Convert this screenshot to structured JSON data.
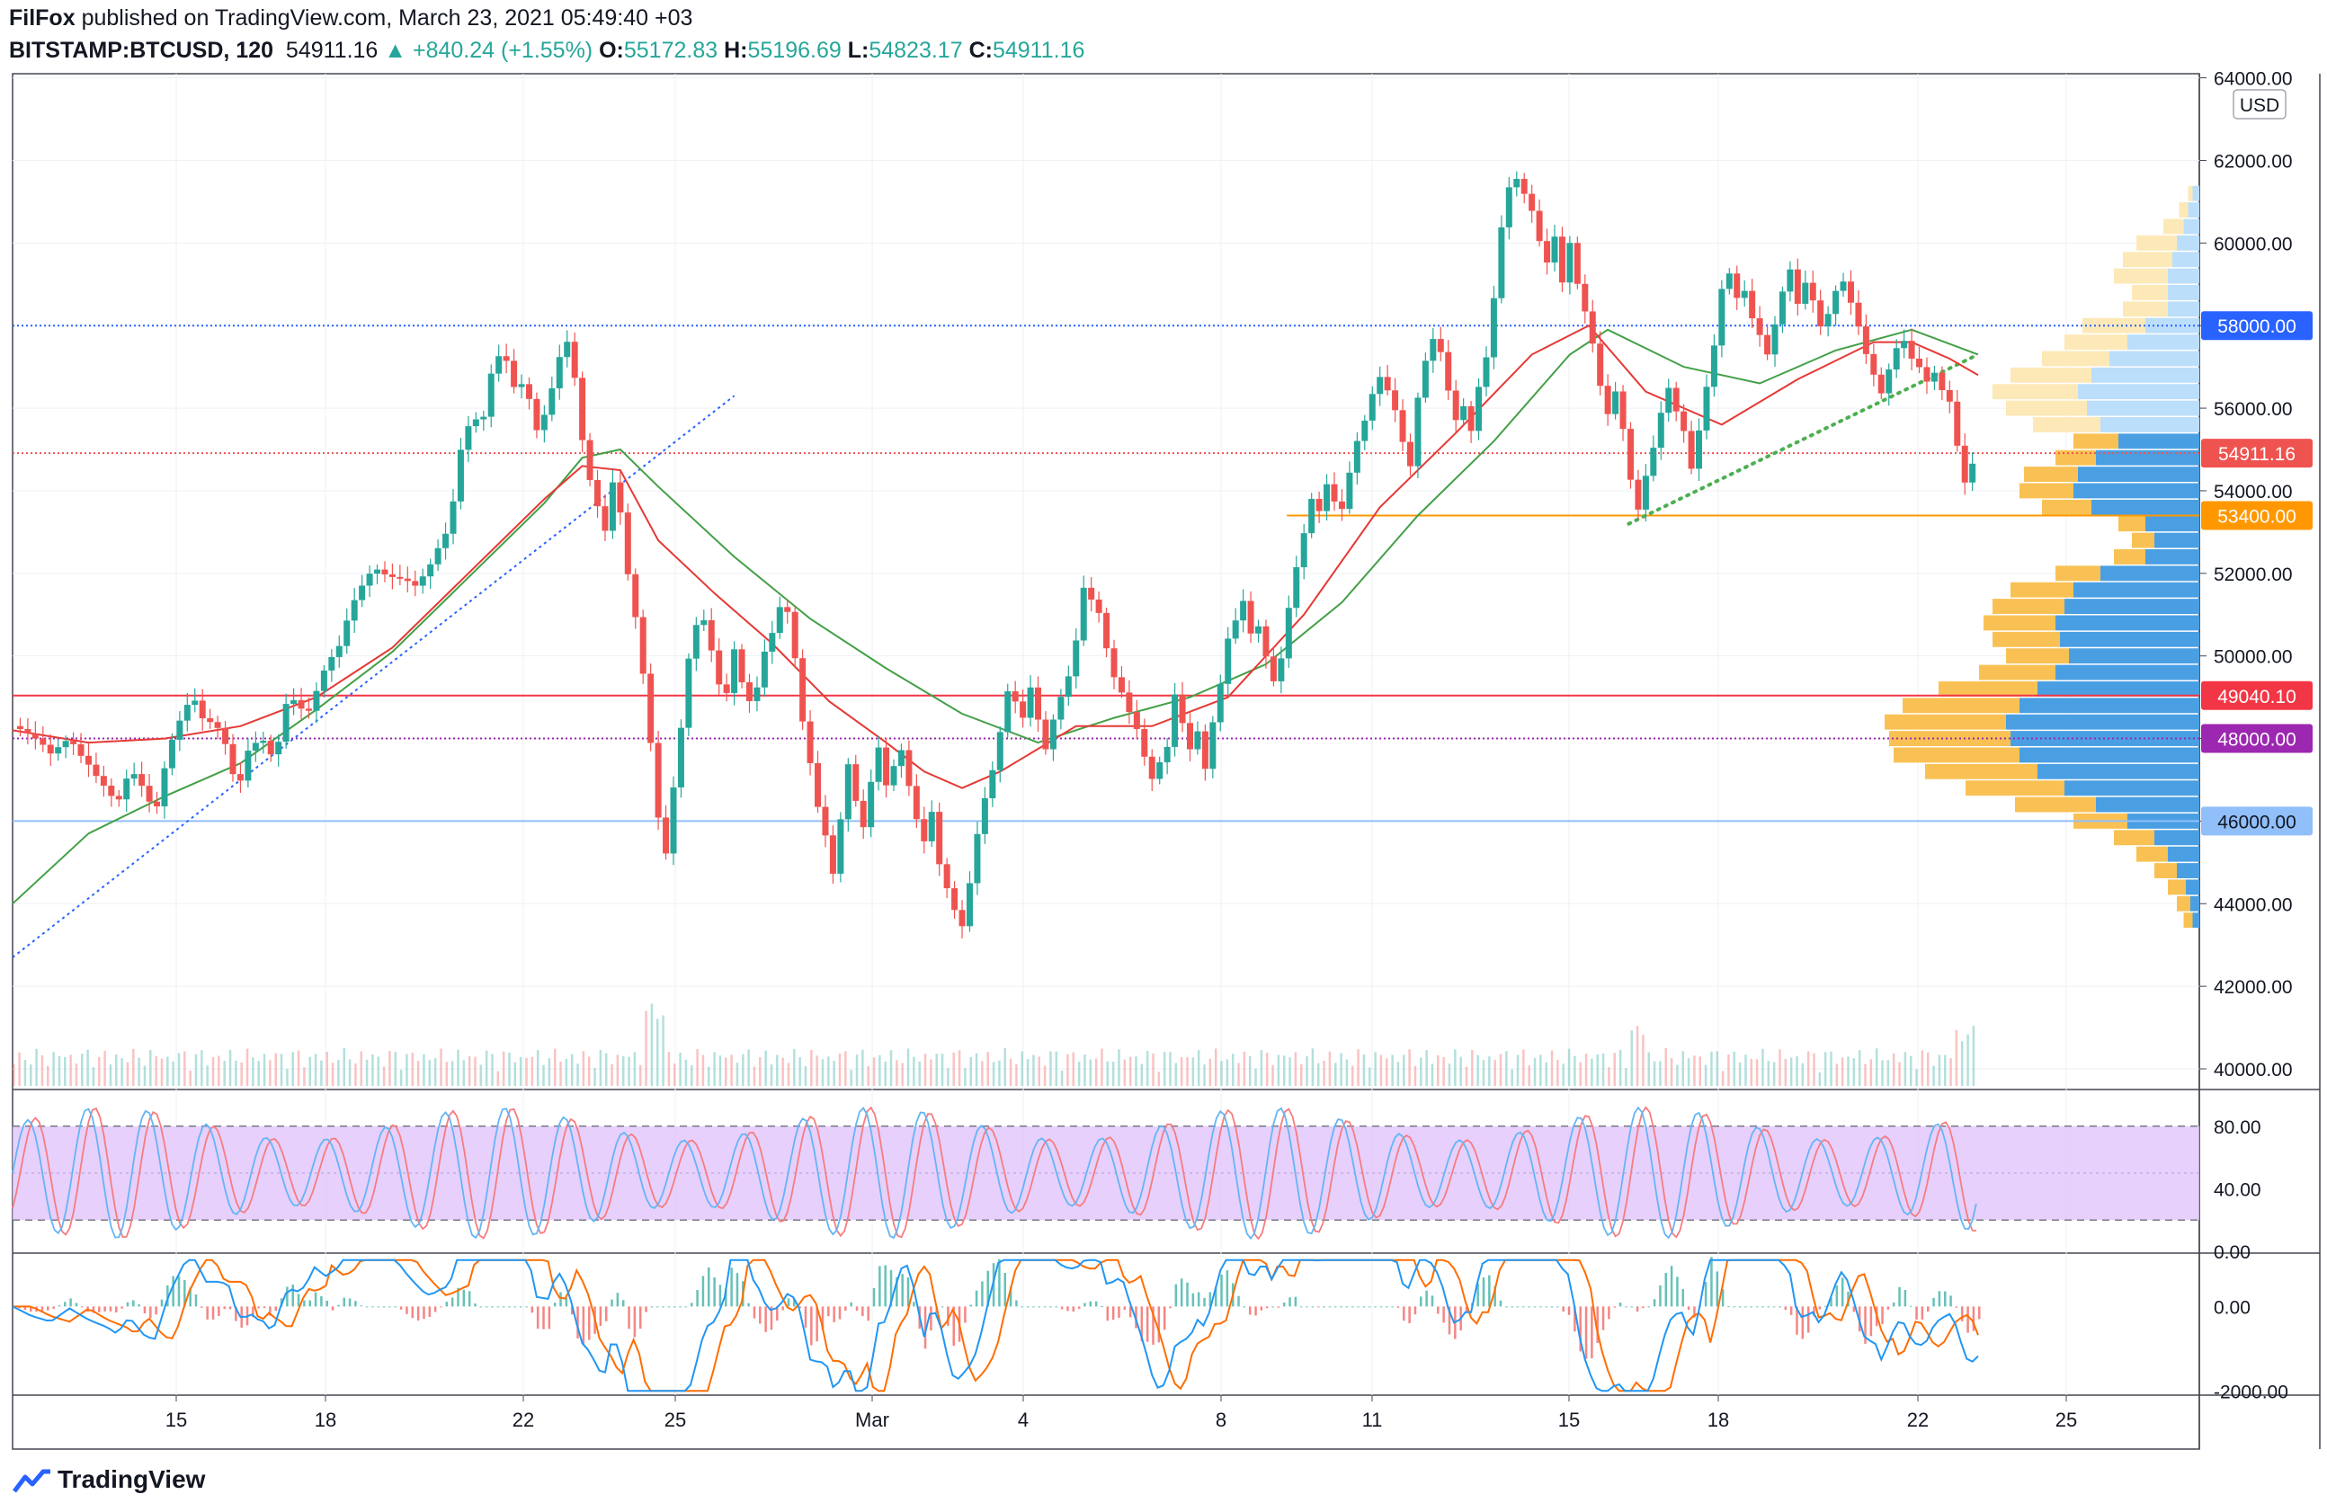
{
  "header": {
    "author": "FilFox",
    "published": "published on TradingView.com, March 23, 2021 05:49:40 +03",
    "symbol": "BITSTAMP:BTCUSD, 120",
    "last": "54911.16",
    "change": "▲ +840.24 (+1.55%)",
    "o_label": "O:",
    "o": "55172.83",
    "h_label": "H:",
    "h": "55196.69",
    "l_label": "L:",
    "l": "54823.17",
    "c_label": "C:",
    "c": "54911.16"
  },
  "footer": {
    "brand": "TradingView",
    "icon": "tradingview-logo-icon"
  },
  "colors": {
    "up": "#26a69a",
    "down": "#ef5350",
    "ma_red": "#e53935",
    "ma_green": "#43a047",
    "rsi_band": "#e1c4fa",
    "macd_blue": "#2196f3",
    "macd_orange": "#ff6d00"
  },
  "chart_data": {
    "type": "candlestick",
    "currency": "USD",
    "y_ticks": [
      "64000.00",
      "62000.00",
      "60000.00",
      "58000.00",
      "56000.00",
      "54000.00",
      "52000.00",
      "50000.00",
      "48000.00",
      "46000.00",
      "44000.00",
      "42000.00",
      "40000.00"
    ],
    "ylim": [
      39500,
      64100
    ],
    "x_ticks": [
      "15",
      "18",
      "22",
      "25",
      "Mar",
      "4",
      "8",
      "11",
      "15",
      "18",
      "22",
      "25"
    ],
    "price_labels": [
      {
        "value": 58000,
        "text": "58000.00",
        "color": "#2962ff"
      },
      {
        "value": 54911.16,
        "text": "54911.16",
        "color": "#ef5350"
      },
      {
        "value": 53400,
        "text": "53400.00",
        "color": "#ff9800"
      },
      {
        "value": 49040.1,
        "text": "49040.10",
        "color": "#f23645"
      },
      {
        "value": 48000,
        "text": "48000.00",
        "color": "#9c27b0"
      },
      {
        "value": 46000,
        "text": "46000.00",
        "color": "#90bff9"
      }
    ],
    "close_path": [
      [
        0,
        48300
      ],
      [
        10,
        47800
      ],
      [
        20,
        47500
      ],
      [
        30,
        48200
      ],
      [
        40,
        47600
      ],
      [
        50,
        46700
      ],
      [
        55,
        46200
      ],
      [
        62,
        47000
      ],
      [
        70,
        46600
      ],
      [
        75,
        46200
      ],
      [
        82,
        48000
      ],
      [
        90,
        48900
      ],
      [
        95,
        49100
      ],
      [
        100,
        48400
      ],
      [
        110,
        47900
      ],
      [
        115,
        47200
      ],
      [
        118,
        46500
      ],
      [
        125,
        48000
      ],
      [
        132,
        48200
      ],
      [
        138,
        47700
      ],
      [
        145,
        49100
      ],
      [
        150,
        48700
      ],
      [
        155,
        48300
      ],
      [
        160,
        48900
      ],
      [
        165,
        49600
      ],
      [
        172,
        50300
      ],
      [
        178,
        51400
      ],
      [
        183,
        51900
      ],
      [
        190,
        52300
      ],
      [
        198,
        51800
      ],
      [
        205,
        51600
      ],
      [
        212,
        51500
      ],
      [
        218,
        52000
      ],
      [
        225,
        52900
      ],
      [
        230,
        53400
      ],
      [
        236,
        55200
      ],
      [
        242,
        55900
      ],
      [
        247,
        55400
      ],
      [
        252,
        56600
      ],
      [
        258,
        57200
      ],
      [
        264,
        56400
      ],
      [
        270,
        56700
      ],
      [
        276,
        55700
      ],
      [
        282,
        56300
      ],
      [
        287,
        57300
      ],
      [
        292,
        57600
      ],
      [
        296,
        56600
      ],
      [
        300,
        55000
      ],
      [
        304,
        54000
      ],
      [
        308,
        53400
      ],
      [
        312,
        52900
      ],
      [
        316,
        54200
      ],
      [
        320,
        53600
      ],
      [
        324,
        52200
      ],
      [
        328,
        51200
      ],
      [
        332,
        49800
      ],
      [
        335,
        48600
      ],
      [
        338,
        46900
      ],
      [
        341,
        45700
      ],
      [
        344,
        45100
      ],
      [
        348,
        46600
      ],
      [
        352,
        48000
      ],
      [
        356,
        49700
      ],
      [
        360,
        50600
      ],
      [
        365,
        50900
      ],
      [
        370,
        49800
      ],
      [
        375,
        49100
      ],
      [
        380,
        50400
      ],
      [
        385,
        49300
      ],
      [
        390,
        48700
      ],
      [
        395,
        49800
      ],
      [
        400,
        50300
      ],
      [
        405,
        51100
      ],
      [
        408,
        50900
      ],
      [
        412,
        49900
      ],
      [
        416,
        48500
      ],
      [
        420,
        47600
      ],
      [
        424,
        46600
      ],
      [
        428,
        45900
      ],
      [
        432,
        44900
      ],
      [
        436,
        46100
      ],
      [
        440,
        47300
      ],
      [
        444,
        46300
      ],
      [
        448,
        45600
      ],
      [
        452,
        46700
      ],
      [
        456,
        47600
      ],
      [
        460,
        46800
      ],
      [
        464,
        47400
      ],
      [
        468,
        47900
      ],
      [
        472,
        47100
      ],
      [
        476,
        46300
      ],
      [
        480,
        45700
      ],
      [
        484,
        46300
      ],
      [
        488,
        44900
      ],
      [
        492,
        44200
      ],
      [
        496,
        43600
      ],
      [
        500,
        43200
      ],
      [
        504,
        44300
      ],
      [
        508,
        45600
      ],
      [
        512,
        46600
      ],
      [
        516,
        47400
      ],
      [
        520,
        48400
      ],
      [
        524,
        49400
      ],
      [
        528,
        49100
      ],
      [
        532,
        48600
      ],
      [
        536,
        49200
      ],
      [
        540,
        48300
      ],
      [
        544,
        47500
      ],
      [
        548,
        48200
      ],
      [
        552,
        48800
      ],
      [
        556,
        49400
      ],
      [
        560,
        50400
      ],
      [
        564,
        51800
      ],
      [
        568,
        51600
      ],
      [
        572,
        51300
      ],
      [
        576,
        50400
      ],
      [
        580,
        49600
      ],
      [
        584,
        49100
      ],
      [
        588,
        48500
      ],
      [
        592,
        48000
      ],
      [
        596,
        47300
      ],
      [
        600,
        46800
      ],
      [
        604,
        47300
      ],
      [
        608,
        47800
      ],
      [
        612,
        49200
      ],
      [
        616,
        48600
      ],
      [
        620,
        48000
      ],
      [
        624,
        48400
      ],
      [
        628,
        47400
      ],
      [
        632,
        48400
      ],
      [
        636,
        49200
      ],
      [
        640,
        50200
      ],
      [
        644,
        50600
      ],
      [
        648,
        51100
      ],
      [
        652,
        50400
      ],
      [
        656,
        50700
      ],
      [
        660,
        50100
      ],
      [
        664,
        49600
      ],
      [
        668,
        50200
      ],
      [
        672,
        51400
      ],
      [
        676,
        52300
      ],
      [
        680,
        53000
      ],
      [
        684,
        53700
      ],
      [
        688,
        53300
      ],
      [
        692,
        53900
      ],
      [
        696,
        53500
      ],
      [
        700,
        53400
      ],
      [
        704,
        54400
      ],
      [
        708,
        55300
      ],
      [
        712,
        55900
      ],
      [
        716,
        56600
      ],
      [
        720,
        57000
      ],
      [
        724,
        56600
      ],
      [
        728,
        56000
      ],
      [
        732,
        55100
      ],
      [
        736,
        54400
      ],
      [
        740,
        56000
      ],
      [
        744,
        56900
      ],
      [
        748,
        57500
      ],
      [
        752,
        57300
      ],
      [
        756,
        56500
      ],
      [
        760,
        55900
      ],
      [
        764,
        56300
      ],
      [
        768,
        55700
      ],
      [
        772,
        56700
      ],
      [
        776,
        57300
      ],
      [
        780,
        58600
      ],
      [
        784,
        60200
      ],
      [
        788,
        61100
      ],
      [
        792,
        61300
      ],
      [
        796,
        61000
      ],
      [
        800,
        60700
      ],
      [
        804,
        60100
      ],
      [
        808,
        59700
      ],
      [
        812,
        60400
      ],
      [
        816,
        59300
      ],
      [
        820,
        60200
      ],
      [
        824,
        59100
      ],
      [
        828,
        58300
      ],
      [
        832,
        57400
      ],
      [
        836,
        56300
      ],
      [
        840,
        55600
      ],
      [
        844,
        56200
      ],
      [
        848,
        55400
      ],
      [
        852,
        54300
      ],
      [
        856,
        53700
      ],
      [
        860,
        54600
      ],
      [
        864,
        55300
      ],
      [
        868,
        56100
      ],
      [
        872,
        56600
      ],
      [
        876,
        55900
      ],
      [
        880,
        55300
      ],
      [
        884,
        54300
      ],
      [
        888,
        55200
      ],
      [
        892,
        56300
      ],
      [
        896,
        57400
      ],
      [
        900,
        58900
      ],
      [
        904,
        59400
      ],
      [
        908,
        58900
      ],
      [
        912,
        59100
      ],
      [
        916,
        58400
      ],
      [
        920,
        57900
      ],
      [
        924,
        57300
      ],
      [
        928,
        57900
      ],
      [
        932,
        58600
      ],
      [
        936,
        59100
      ],
      [
        940,
        58300
      ],
      [
        944,
        58900
      ],
      [
        948,
        58600
      ],
      [
        952,
        58100
      ],
      [
        956,
        58500
      ],
      [
        960,
        59100
      ],
      [
        964,
        59300
      ],
      [
        968,
        58700
      ],
      [
        972,
        58000
      ],
      [
        976,
        57200
      ],
      [
        980,
        56600
      ],
      [
        984,
        56100
      ],
      [
        988,
        56700
      ],
      [
        992,
        57300
      ],
      [
        996,
        57600
      ],
      [
        1000,
        57300
      ],
      [
        1004,
        57200
      ],
      [
        1008,
        56900
      ],
      [
        1012,
        57100
      ],
      [
        1016,
        56600
      ],
      [
        1020,
        56200
      ],
      [
        1024,
        55000
      ],
      [
        1028,
        54000
      ],
      [
        1032,
        54400
      ],
      [
        1035,
        54911
      ]
    ],
    "ma_red": [
      [
        0,
        48200
      ],
      [
        40,
        47900
      ],
      [
        80,
        48000
      ],
      [
        120,
        48300
      ],
      [
        160,
        49000
      ],
      [
        200,
        50200
      ],
      [
        240,
        52000
      ],
      [
        280,
        53800
      ],
      [
        300,
        54600
      ],
      [
        320,
        54500
      ],
      [
        340,
        52800
      ],
      [
        370,
        51500
      ],
      [
        400,
        50300
      ],
      [
        430,
        48900
      ],
      [
        460,
        47900
      ],
      [
        480,
        47200
      ],
      [
        500,
        46800
      ],
      [
        520,
        47200
      ],
      [
        560,
        48300
      ],
      [
        600,
        48300
      ],
      [
        640,
        49000
      ],
      [
        680,
        51000
      ],
      [
        720,
        53600
      ],
      [
        760,
        55400
      ],
      [
        800,
        57300
      ],
      [
        830,
        58000
      ],
      [
        860,
        56400
      ],
      [
        900,
        55600
      ],
      [
        940,
        56700
      ],
      [
        980,
        57600
      ],
      [
        1000,
        57600
      ],
      [
        1020,
        57200
      ],
      [
        1035,
        56800
      ]
    ],
    "ma_green": [
      [
        0,
        44000
      ],
      [
        40,
        45700
      ],
      [
        80,
        46600
      ],
      [
        120,
        47400
      ],
      [
        160,
        48700
      ],
      [
        200,
        50100
      ],
      [
        240,
        51900
      ],
      [
        280,
        53700
      ],
      [
        300,
        54800
      ],
      [
        320,
        55000
      ],
      [
        340,
        54100
      ],
      [
        380,
        52400
      ],
      [
        420,
        50900
      ],
      [
        460,
        49700
      ],
      [
        500,
        48600
      ],
      [
        540,
        47900
      ],
      [
        580,
        48500
      ],
      [
        620,
        49000
      ],
      [
        660,
        49800
      ],
      [
        700,
        51300
      ],
      [
        740,
        53400
      ],
      [
        780,
        55200
      ],
      [
        820,
        57300
      ],
      [
        840,
        57900
      ],
      [
        880,
        57000
      ],
      [
        920,
        56600
      ],
      [
        960,
        57400
      ],
      [
        1000,
        57900
      ],
      [
        1035,
        57300
      ]
    ],
    "trendlines": [
      {
        "from": [
          0,
          42700
        ],
        "to": [
          380,
          56300
        ],
        "color": "#2962ff",
        "dash": "dotted"
      },
      {
        "from": [
          851,
          53200
        ],
        "to": [
          1035,
          57300
        ],
        "color": "#4caf50",
        "dash": "dots"
      }
    ],
    "hlines": [
      {
        "value": 58000,
        "color": "#2962ff",
        "dash": "2,3",
        "full": true
      },
      {
        "value": 54911.16,
        "color": "#ef5350",
        "dash": "2,3",
        "full": true
      },
      {
        "value": 53400,
        "color": "#ff9800",
        "dash": "",
        "from": 671
      },
      {
        "value": 49040.1,
        "color": "#f23645",
        "dash": "",
        "full": true
      },
      {
        "value": 48000,
        "color": "#9c27b0",
        "dash": "2,3",
        "full": true
      },
      {
        "value": 46000,
        "color": "#90bff9",
        "dash": "",
        "full": true
      }
    ],
    "volume_profile": [
      [
        61200,
        5,
        3
      ],
      [
        60800,
        9,
        5
      ],
      [
        60400,
        16,
        7
      ],
      [
        60000,
        28,
        10
      ],
      [
        59600,
        34,
        12
      ],
      [
        59200,
        38,
        14
      ],
      [
        58800,
        30,
        14
      ],
      [
        58400,
        34,
        14
      ],
      [
        58000,
        52,
        24
      ],
      [
        57600,
        60,
        32
      ],
      [
        57200,
        70,
        40
      ],
      [
        56800,
        84,
        48
      ],
      [
        56400,
        92,
        54
      ],
      [
        56000,
        86,
        50
      ],
      [
        55600,
        74,
        44
      ],
      [
        55200,
        56,
        36
      ],
      [
        54800,
        64,
        46
      ],
      [
        54400,
        78,
        54
      ],
      [
        54000,
        80,
        56
      ],
      [
        53600,
        70,
        48
      ],
      [
        53200,
        36,
        24
      ],
      [
        52800,
        30,
        20
      ],
      [
        52400,
        38,
        24
      ],
      [
        52000,
        64,
        44
      ],
      [
        51600,
        84,
        56
      ],
      [
        51200,
        92,
        60
      ],
      [
        50800,
        96,
        64
      ],
      [
        50400,
        92,
        62
      ],
      [
        50000,
        86,
        58
      ],
      [
        49600,
        98,
        64
      ],
      [
        49200,
        116,
        72
      ],
      [
        48800,
        132,
        80
      ],
      [
        48400,
        140,
        86
      ],
      [
        48000,
        138,
        84
      ],
      [
        47600,
        136,
        80
      ],
      [
        47200,
        122,
        72
      ],
      [
        46800,
        104,
        60
      ],
      [
        46400,
        82,
        46
      ],
      [
        46000,
        56,
        32
      ],
      [
        45600,
        38,
        20
      ],
      [
        45200,
        28,
        14
      ],
      [
        44800,
        20,
        10
      ],
      [
        44400,
        14,
        6
      ],
      [
        44000,
        10,
        4
      ],
      [
        43600,
        7,
        3
      ]
    ],
    "rsi": {
      "ticks": [
        "80.00",
        "40.00",
        "0.00"
      ],
      "upper": 80,
      "lower": 20,
      "ylim": [
        0,
        100
      ]
    },
    "macd": {
      "ticks": [
        "0.00",
        "-2000.00"
      ],
      "ylim": [
        -2100,
        1200
      ]
    }
  }
}
